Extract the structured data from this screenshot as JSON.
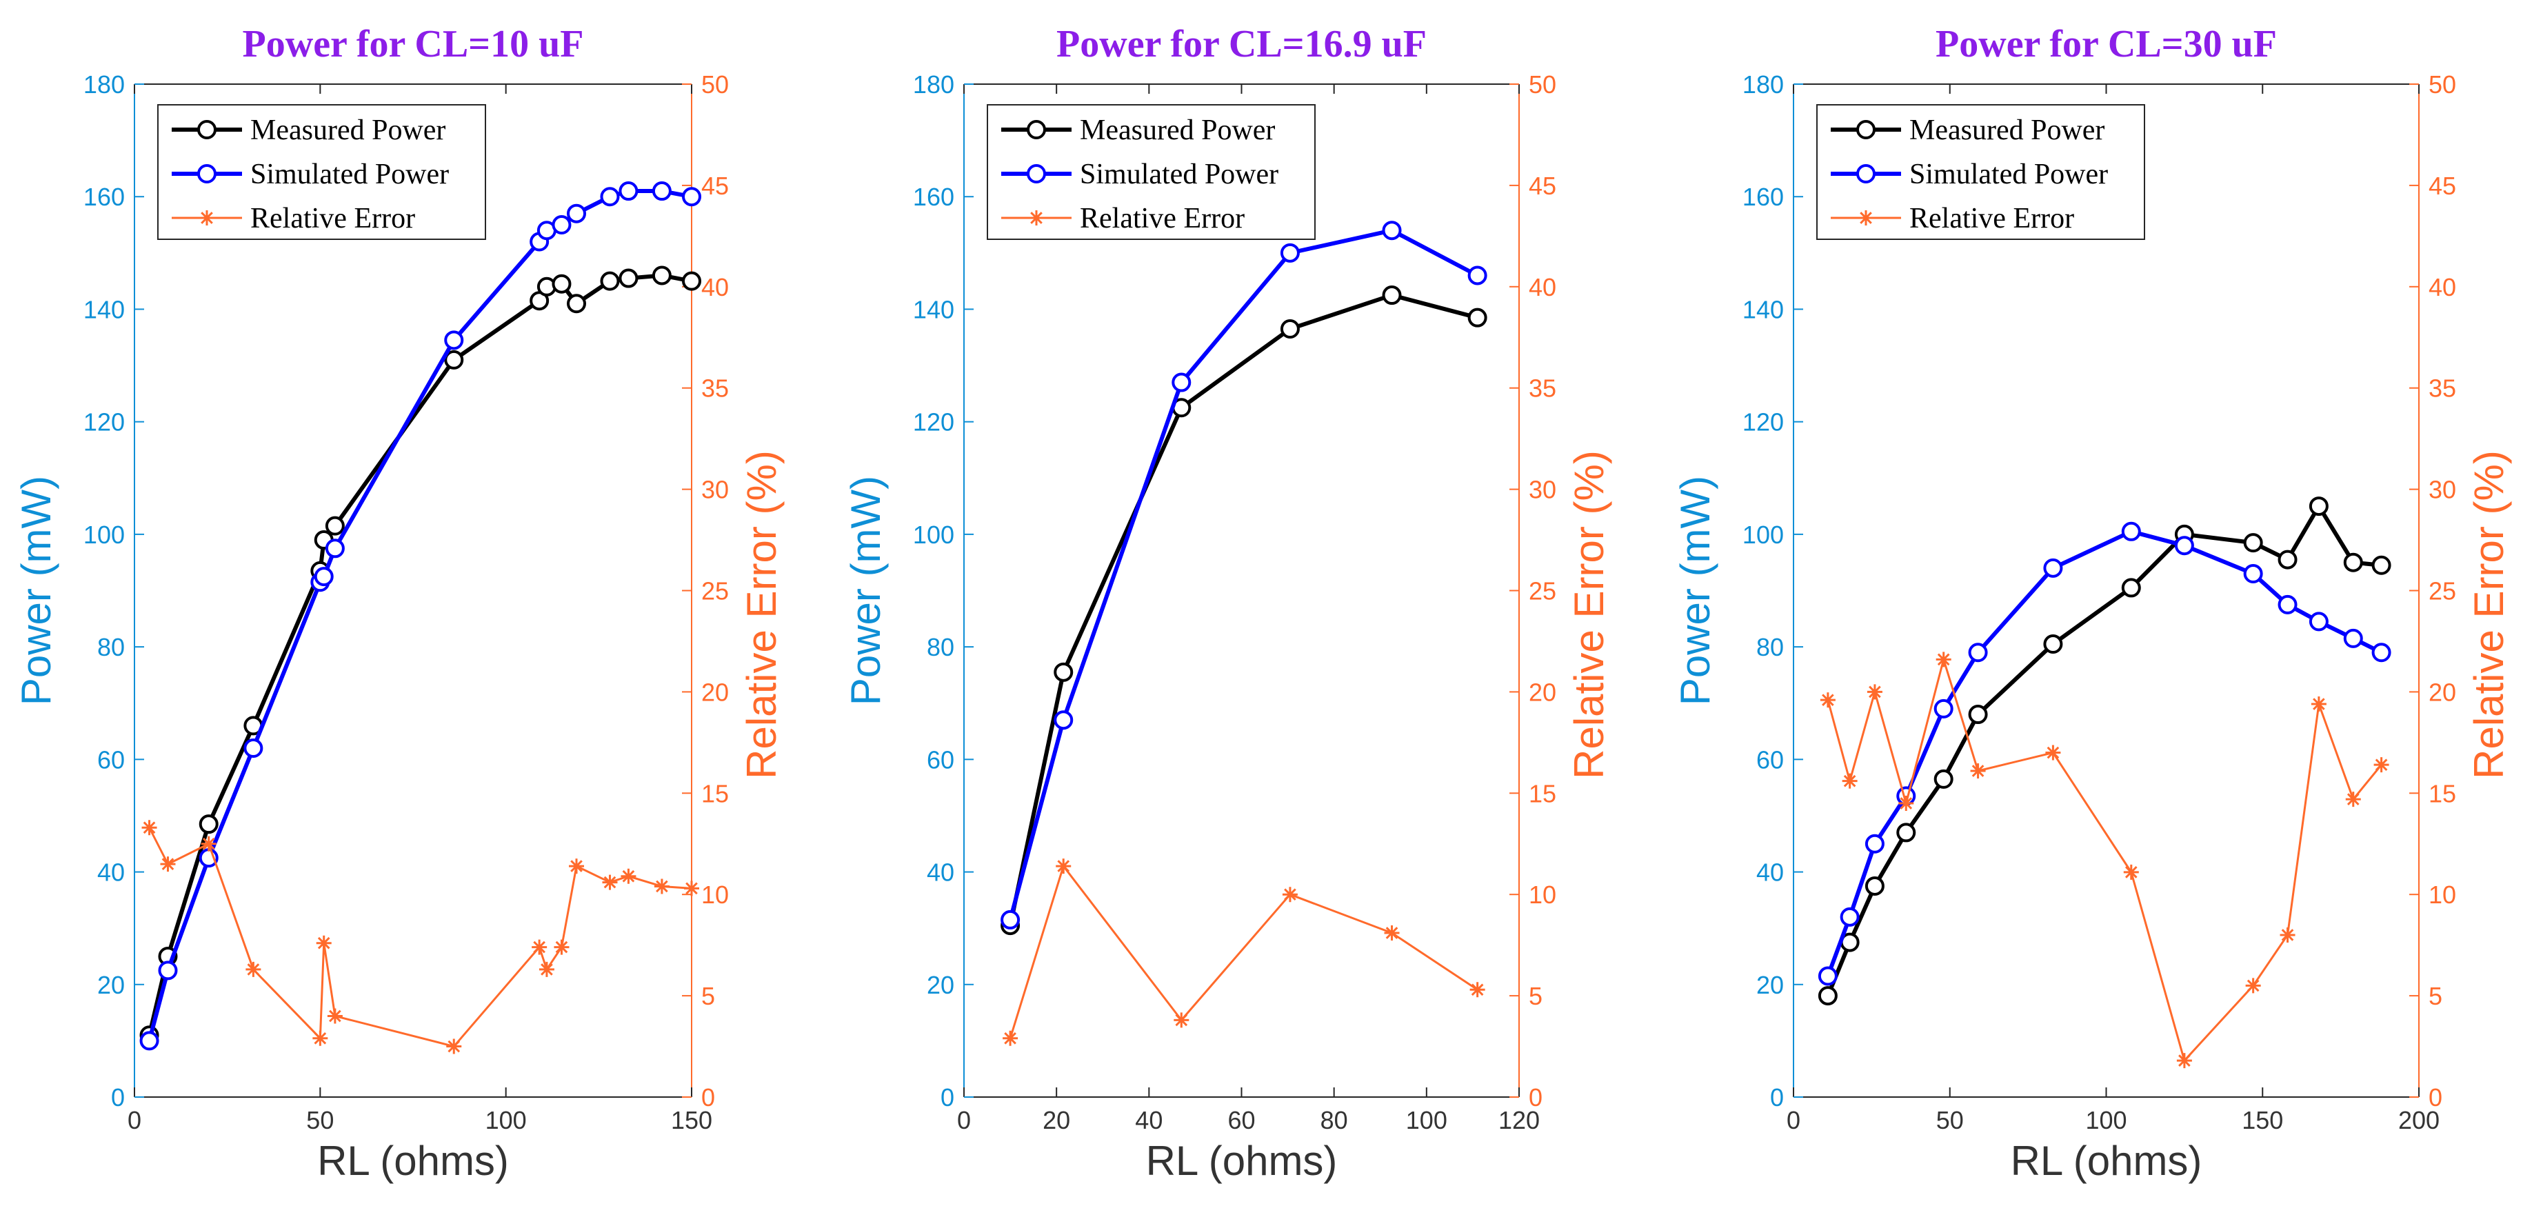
{
  "chart_data": [
    {
      "type": "line",
      "title": "Power for CL=10 uF",
      "xlabel": "RL (ohms)",
      "ylabel_left": "Power (mW)",
      "ylabel_right": "Relative Error (%)",
      "xlim": [
        0,
        150
      ],
      "ylim_left": [
        0,
        180
      ],
      "ylim_right": [
        0,
        50
      ],
      "xticks": [
        0,
        50,
        100,
        150
      ],
      "yticks_left": [
        0,
        20,
        40,
        60,
        80,
        100,
        120,
        140,
        160,
        180
      ],
      "yticks_right": [
        0,
        5,
        10,
        15,
        20,
        25,
        30,
        35,
        40,
        45,
        50
      ],
      "legend": [
        "Measured Power",
        "Simulated Power",
        "Relative Error"
      ],
      "series": [
        {
          "name": "Measured Power",
          "axis": "left",
          "color": "#000000",
          "marker": "circle",
          "x": [
            4,
            9,
            20,
            32,
            50,
            51,
            54,
            86,
            109,
            111,
            115,
            119,
            128,
            133,
            142,
            150
          ],
          "y": [
            11,
            25,
            48.5,
            66,
            93.5,
            99,
            101.5,
            131,
            141.5,
            144,
            144.5,
            141,
            145,
            145.5,
            146,
            145
          ]
        },
        {
          "name": "Simulated Power",
          "axis": "left",
          "color": "#0000ff",
          "marker": "circle",
          "x": [
            4,
            9,
            20,
            32,
            50,
            51,
            54,
            86,
            109,
            111,
            115,
            119,
            128,
            133,
            142,
            150
          ],
          "y": [
            10,
            22.5,
            42.5,
            62,
            91.5,
            92.5,
            97.5,
            134.5,
            152,
            154,
            155,
            157,
            160,
            161,
            161,
            160
          ]
        },
        {
          "name": "Relative Error",
          "axis": "right",
          "color": "#ff6a2b",
          "marker": "star",
          "x": [
            4,
            9,
            20,
            32,
            50,
            51,
            54,
            86,
            109,
            111,
            115,
            119,
            128,
            133,
            142,
            150
          ],
          "y": [
            13.3,
            11.5,
            12.5,
            6.3,
            2.9,
            7.6,
            4.0,
            2.5,
            7.4,
            6.3,
            7.4,
            11.4,
            10.6,
            10.9,
            10.4,
            10.3
          ]
        }
      ]
    },
    {
      "type": "line",
      "title": "Power for CL=16.9 uF",
      "xlabel": "RL (ohms)",
      "ylabel_left": "Power (mW)",
      "ylabel_right": "Relative Error (%)",
      "xlim": [
        0,
        120
      ],
      "ylim_left": [
        0,
        180
      ],
      "ylim_right": [
        0,
        50
      ],
      "xticks": [
        0,
        20,
        40,
        60,
        80,
        100,
        120
      ],
      "yticks_left": [
        0,
        20,
        40,
        60,
        80,
        100,
        120,
        140,
        160,
        180
      ],
      "yticks_right": [
        0,
        5,
        10,
        15,
        20,
        25,
        30,
        35,
        40,
        45,
        50
      ],
      "legend": [
        "Measured Power",
        "Simulated Power",
        "Relative Error"
      ],
      "series": [
        {
          "name": "Measured Power",
          "axis": "left",
          "color": "#000000",
          "marker": "circle",
          "x": [
            10,
            21.5,
            47,
            70.5,
            92.5,
            111
          ],
          "y": [
            30.5,
            75.5,
            122.5,
            136.5,
            142.5,
            138.5
          ]
        },
        {
          "name": "Simulated Power",
          "axis": "left",
          "color": "#0000ff",
          "marker": "circle",
          "x": [
            10,
            21.5,
            47,
            70.5,
            92.5,
            111
          ],
          "y": [
            31.5,
            67,
            127,
            150,
            154,
            146
          ]
        },
        {
          "name": "Relative Error",
          "axis": "right",
          "color": "#ff6a2b",
          "marker": "star",
          "x": [
            10,
            21.5,
            47,
            70.5,
            92.5,
            111
          ],
          "y": [
            2.9,
            11.4,
            3.8,
            10.0,
            8.1,
            5.3
          ]
        }
      ]
    },
    {
      "type": "line",
      "title": "Power for CL=30 uF",
      "xlabel": "RL (ohms)",
      "ylabel_left": "Power (mW)",
      "ylabel_right": "Relative Error (%)",
      "xlim": [
        0,
        200
      ],
      "ylim_left": [
        0,
        180
      ],
      "ylim_right": [
        0,
        50
      ],
      "xticks": [
        0,
        50,
        100,
        150,
        200
      ],
      "yticks_left": [
        0,
        20,
        40,
        60,
        80,
        100,
        120,
        140,
        160,
        180
      ],
      "yticks_right": [
        0,
        5,
        10,
        15,
        20,
        25,
        30,
        35,
        40,
        45,
        50
      ],
      "legend": [
        "Measured Power",
        "Simulated Power",
        "Relative Error"
      ],
      "series": [
        {
          "name": "Measured Power",
          "axis": "left",
          "color": "#000000",
          "marker": "circle",
          "x": [
            11,
            18,
            26,
            36,
            48,
            59,
            83,
            108,
            125,
            147,
            158,
            168,
            179,
            188
          ],
          "y": [
            18,
            27.5,
            37.5,
            47,
            56.5,
            68,
            80.5,
            90.5,
            100,
            98.5,
            95.5,
            105,
            95,
            94.5
          ]
        },
        {
          "name": "Simulated Power",
          "axis": "left",
          "color": "#0000ff",
          "marker": "circle",
          "x": [
            11,
            18,
            26,
            36,
            48,
            59,
            83,
            108,
            125,
            147,
            158,
            168,
            179,
            188
          ],
          "y": [
            21.5,
            32,
            45,
            53.5,
            69,
            79,
            94,
            100.5,
            98,
            93,
            87.5,
            84.5,
            81.5,
            79
          ]
        },
        {
          "name": "Relative Error",
          "axis": "right",
          "color": "#ff6a2b",
          "marker": "star",
          "x": [
            11,
            18,
            26,
            36,
            48,
            59,
            83,
            108,
            125,
            147,
            158,
            168,
            179,
            188
          ],
          "y": [
            19.6,
            15.6,
            20.0,
            14.5,
            21.6,
            16.1,
            17.0,
            11.1,
            1.8,
            5.5,
            8.0,
            19.4,
            14.7,
            16.4
          ]
        }
      ]
    }
  ]
}
